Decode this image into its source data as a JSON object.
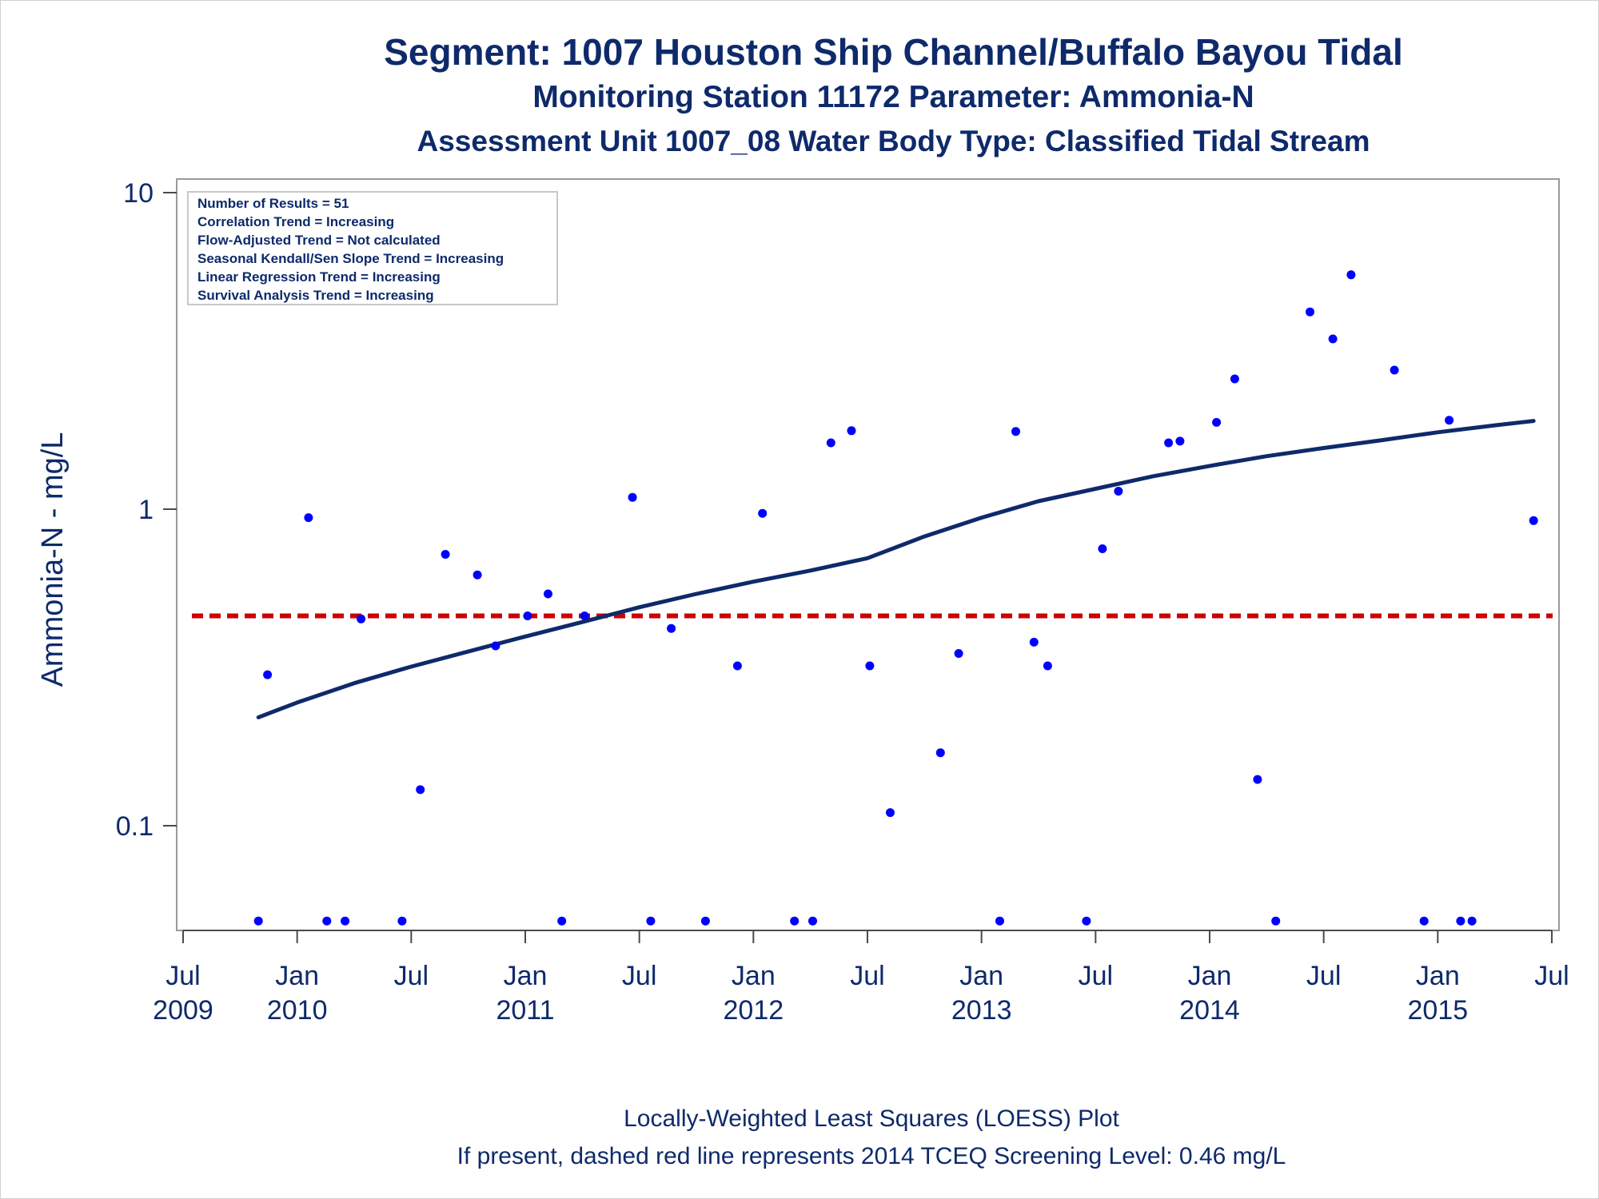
{
  "titles": {
    "line1": "Segment: 1007  Houston Ship Channel/Buffalo Bayou Tidal",
    "line2": "Monitoring Station 11172 Parameter: Ammonia-N",
    "line3": "Assessment Unit 1007_08   Water Body Type: Classified Tidal Stream"
  },
  "footer": {
    "line1": "Locally-Weighted Least Squares (LOESS) Plot",
    "line2": "If present, dashed red line represents 2014 TCEQ Screening Level: 0.46 mg/L"
  },
  "info_box": [
    "Number of Results = 51",
    "Correlation Trend = Increasing",
    "Flow-Adjusted Trend = Not calculated",
    "Seasonal Kendall/Sen Slope Trend = Increasing",
    "Linear Regression Trend = Increasing",
    "Survival Analysis Trend = Increasing"
  ],
  "colors": {
    "text": "#0e2a6b",
    "points": "#0000ff",
    "loess": "#0e2a6b",
    "screening": "#cc0000",
    "frame": "#9a9a9a"
  },
  "chart_data": {
    "type": "scatter",
    "ylabel": "Ammonia-N - mg/L",
    "y_scale": "log",
    "ylim": [
      0.05,
      10
    ],
    "y_ticks": [
      {
        "value": 10,
        "label": "10"
      },
      {
        "value": 1,
        "label": "1"
      },
      {
        "value": 0.1,
        "label": "0.1"
      }
    ],
    "x_unit": "year",
    "xlim": [
      2009.48,
      2015.55
    ],
    "x_ticks": [
      {
        "value": 2009.5,
        "line1": "Jul",
        "line2": "2009"
      },
      {
        "value": 2010.0,
        "line1": "Jan",
        "line2": "2010"
      },
      {
        "value": 2010.5,
        "line1": "Jul",
        "line2": ""
      },
      {
        "value": 2011.0,
        "line1": "Jan",
        "line2": "2011"
      },
      {
        "value": 2011.5,
        "line1": "Jul",
        "line2": ""
      },
      {
        "value": 2012.0,
        "line1": "Jan",
        "line2": "2012"
      },
      {
        "value": 2012.5,
        "line1": "Jul",
        "line2": ""
      },
      {
        "value": 2013.0,
        "line1": "Jan",
        "line2": "2013"
      },
      {
        "value": 2013.5,
        "line1": "Jul",
        "line2": ""
      },
      {
        "value": 2014.0,
        "line1": "Jan",
        "line2": "2014"
      },
      {
        "value": 2014.5,
        "line1": "Jul",
        "line2": ""
      },
      {
        "value": 2015.0,
        "line1": "Jan",
        "line2": "2015"
      },
      {
        "value": 2015.5,
        "line1": "Jul",
        "line2": ""
      }
    ],
    "screening_level": 0.46,
    "points": [
      {
        "x": 2009.83,
        "y": 0.05
      },
      {
        "x": 2009.87,
        "y": 0.3
      },
      {
        "x": 2010.05,
        "y": 0.94
      },
      {
        "x": 2010.13,
        "y": 0.05
      },
      {
        "x": 2010.21,
        "y": 0.05
      },
      {
        "x": 2010.28,
        "y": 0.45
      },
      {
        "x": 2010.46,
        "y": 0.05
      },
      {
        "x": 2010.54,
        "y": 0.13
      },
      {
        "x": 2010.65,
        "y": 0.72
      },
      {
        "x": 2010.79,
        "y": 0.62
      },
      {
        "x": 2010.87,
        "y": 0.37
      },
      {
        "x": 2011.01,
        "y": 0.46
      },
      {
        "x": 2011.1,
        "y": 0.54
      },
      {
        "x": 2011.16,
        "y": 0.05
      },
      {
        "x": 2011.26,
        "y": 0.46
      },
      {
        "x": 2011.47,
        "y": 1.09
      },
      {
        "x": 2011.55,
        "y": 0.05
      },
      {
        "x": 2011.64,
        "y": 0.42
      },
      {
        "x": 2011.79,
        "y": 0.05
      },
      {
        "x": 2011.93,
        "y": 0.32
      },
      {
        "x": 2012.04,
        "y": 0.97
      },
      {
        "x": 2012.18,
        "y": 0.05
      },
      {
        "x": 2012.26,
        "y": 0.05
      },
      {
        "x": 2012.34,
        "y": 1.62
      },
      {
        "x": 2012.43,
        "y": 1.77
      },
      {
        "x": 2012.51,
        "y": 0.32
      },
      {
        "x": 2012.6,
        "y": 0.11
      },
      {
        "x": 2012.82,
        "y": 0.17
      },
      {
        "x": 2012.9,
        "y": 0.35
      },
      {
        "x": 2013.08,
        "y": 0.05
      },
      {
        "x": 2013.15,
        "y": 1.76
      },
      {
        "x": 2013.23,
        "y": 0.38
      },
      {
        "x": 2013.29,
        "y": 0.32
      },
      {
        "x": 2013.46,
        "y": 0.05
      },
      {
        "x": 2013.53,
        "y": 0.75
      },
      {
        "x": 2013.6,
        "y": 1.14
      },
      {
        "x": 2013.82,
        "y": 1.62
      },
      {
        "x": 2013.87,
        "y": 1.64
      },
      {
        "x": 2014.03,
        "y": 1.88
      },
      {
        "x": 2014.11,
        "y": 2.58
      },
      {
        "x": 2014.21,
        "y": 0.14
      },
      {
        "x": 2014.29,
        "y": 0.05
      },
      {
        "x": 2014.44,
        "y": 4.2
      },
      {
        "x": 2014.54,
        "y": 3.45
      },
      {
        "x": 2014.62,
        "y": 5.5
      },
      {
        "x": 2014.81,
        "y": 2.75
      },
      {
        "x": 2014.94,
        "y": 0.05
      },
      {
        "x": 2015.05,
        "y": 1.91
      },
      {
        "x": 2015.1,
        "y": 0.05
      },
      {
        "x": 2015.15,
        "y": 0.05
      },
      {
        "x": 2015.42,
        "y": 0.92
      }
    ],
    "loess": [
      {
        "x": 2009.83,
        "y": 0.22
      },
      {
        "x": 2010.0,
        "y": 0.245
      },
      {
        "x": 2010.25,
        "y": 0.282
      },
      {
        "x": 2010.5,
        "y": 0.318
      },
      {
        "x": 2010.75,
        "y": 0.355
      },
      {
        "x": 2011.0,
        "y": 0.396
      },
      {
        "x": 2011.25,
        "y": 0.44
      },
      {
        "x": 2011.5,
        "y": 0.49
      },
      {
        "x": 2011.75,
        "y": 0.54
      },
      {
        "x": 2012.0,
        "y": 0.59
      },
      {
        "x": 2012.25,
        "y": 0.64
      },
      {
        "x": 2012.5,
        "y": 0.7
      },
      {
        "x": 2012.75,
        "y": 0.82
      },
      {
        "x": 2013.0,
        "y": 0.94
      },
      {
        "x": 2013.25,
        "y": 1.06
      },
      {
        "x": 2013.5,
        "y": 1.16
      },
      {
        "x": 2013.75,
        "y": 1.27
      },
      {
        "x": 2014.0,
        "y": 1.37
      },
      {
        "x": 2014.25,
        "y": 1.47
      },
      {
        "x": 2014.5,
        "y": 1.56
      },
      {
        "x": 2014.75,
        "y": 1.65
      },
      {
        "x": 2015.0,
        "y": 1.75
      },
      {
        "x": 2015.25,
        "y": 1.84
      },
      {
        "x": 2015.42,
        "y": 1.9
      }
    ]
  }
}
